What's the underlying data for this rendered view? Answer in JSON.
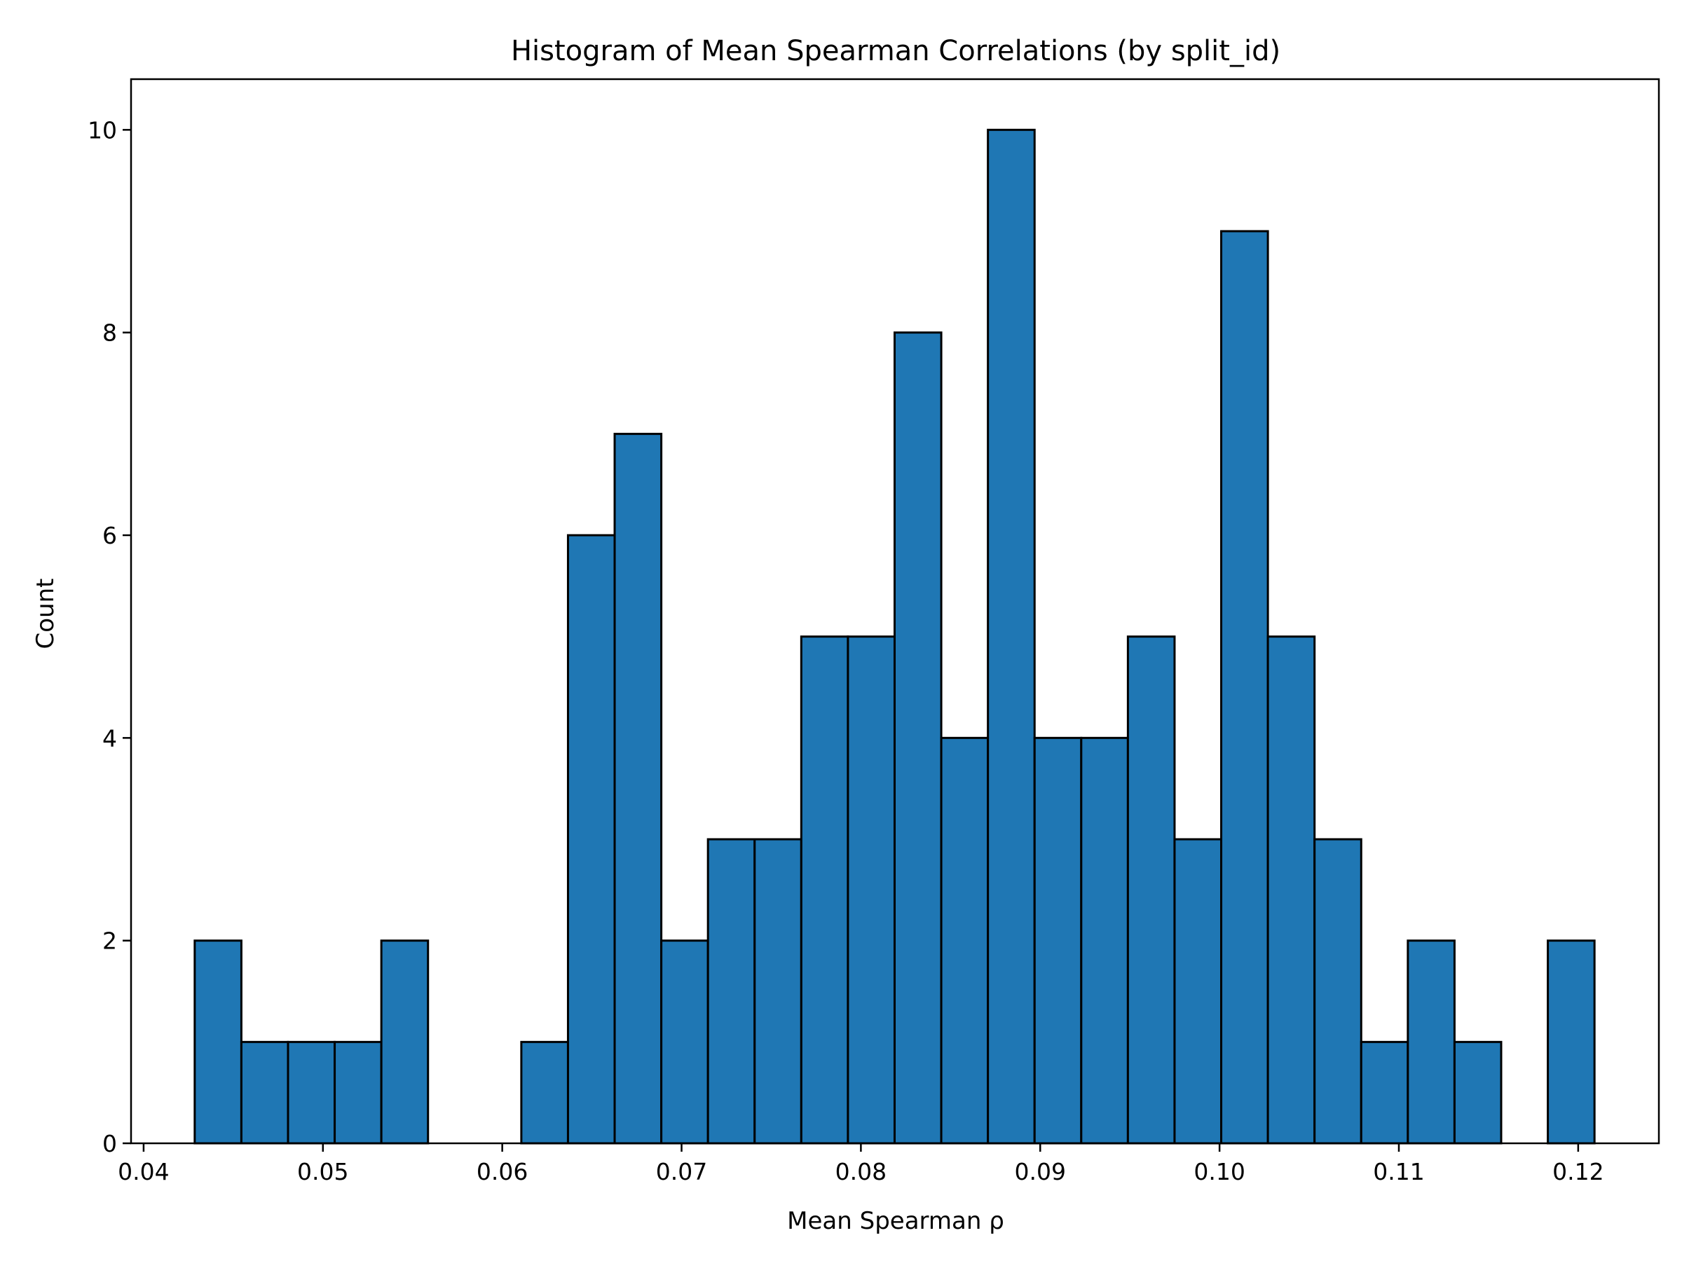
{
  "chart_data": {
    "type": "bar",
    "title": "Histogram of Mean Spearman Correlations (by split_id)",
    "xlabel": "Mean Spearman ρ",
    "ylabel": "Count",
    "xlim": [
      0.0393,
      0.1245
    ],
    "ylim": [
      0,
      10.5
    ],
    "xticks": [
      {
        "value": 0.04,
        "label": "0.04"
      },
      {
        "value": 0.05,
        "label": "0.05"
      },
      {
        "value": 0.06,
        "label": "0.06"
      },
      {
        "value": 0.07,
        "label": "0.07"
      },
      {
        "value": 0.08,
        "label": "0.08"
      },
      {
        "value": 0.09,
        "label": "0.09"
      },
      {
        "value": 0.1,
        "label": "0.10"
      },
      {
        "value": 0.11,
        "label": "0.11"
      },
      {
        "value": 0.12,
        "label": "0.12"
      }
    ],
    "yticks": [
      {
        "value": 0,
        "label": "0"
      },
      {
        "value": 2,
        "label": "2"
      },
      {
        "value": 4,
        "label": "4"
      },
      {
        "value": 6,
        "label": "6"
      },
      {
        "value": 8,
        "label": "8"
      },
      {
        "value": 10,
        "label": "10"
      }
    ],
    "bin_start": 0.04285,
    "bin_width": 0.002602,
    "values": [
      2,
      1,
      1,
      1,
      2,
      0,
      0,
      1,
      6,
      7,
      2,
      3,
      3,
      5,
      5,
      8,
      4,
      10,
      4,
      4,
      5,
      3,
      9,
      5,
      3,
      1,
      2,
      1,
      0,
      2
    ],
    "bar_color": "#1f77b4",
    "edge_color": "#000000",
    "grid": false,
    "legend": "none"
  }
}
